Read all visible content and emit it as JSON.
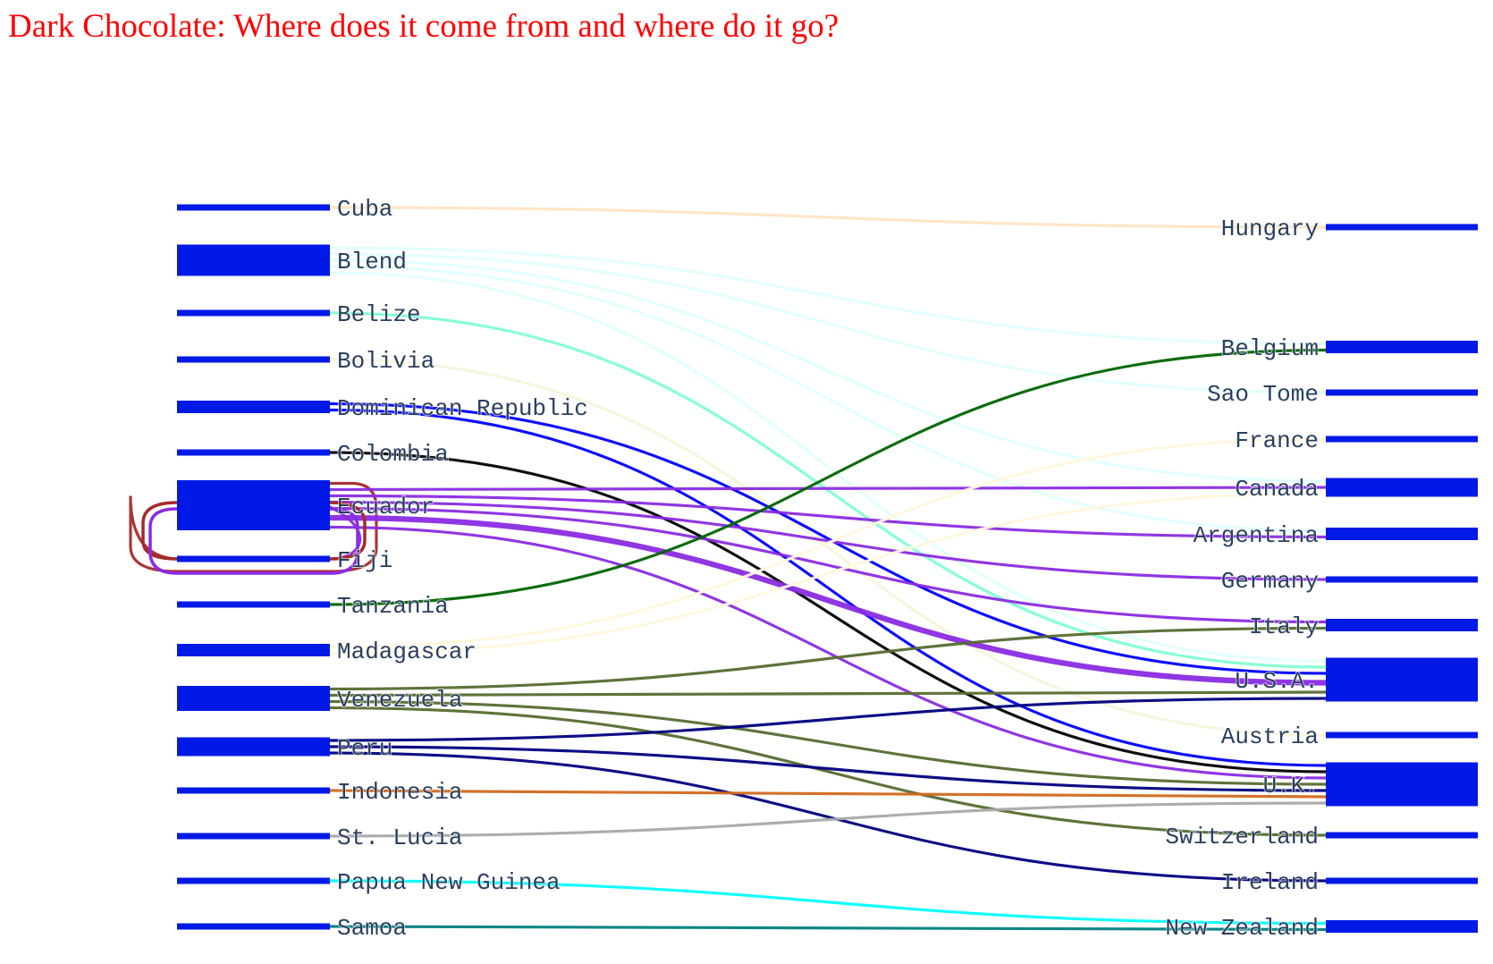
{
  "title": "Dark Chocolate: Where does it come from and where do it go?",
  "colors": {
    "title": "#ff0000",
    "node": "#0019e6",
    "label": "#2a3f5f"
  },
  "chart_data": {
    "type": "sankey",
    "sources": [
      "Cuba",
      "Blend",
      "Belize",
      "Bolivia",
      "Dominican Republic",
      "Colombia",
      "Ecuador",
      "Fiji",
      "Tanzania",
      "Madagascar",
      "Venezuela",
      "Peru",
      "Indonesia",
      "St. Lucia",
      "Papua New Guinea",
      "Samoa"
    ],
    "targets": [
      "Hungary",
      "Belgium",
      "Sao Tome",
      "France",
      "Canada",
      "Argentina",
      "Germany",
      "Italy",
      "U.S.A.",
      "Austria",
      "U.K.",
      "Switzerland",
      "Ireland",
      "New Zealand"
    ],
    "links": [
      {
        "source": "Cuba",
        "target": "Hungary",
        "value": 1,
        "color": "#ffe4c4"
      },
      {
        "source": "Blend",
        "target": "Belgium",
        "value": 1,
        "color": "#e0ffff"
      },
      {
        "source": "Blend",
        "target": "Sao Tome",
        "value": 1,
        "color": "#e0ffff"
      },
      {
        "source": "Blend",
        "target": "Canada",
        "value": 1,
        "color": "#e0ffff"
      },
      {
        "source": "Blend",
        "target": "Argentina",
        "value": 1,
        "color": "#e0ffff"
      },
      {
        "source": "Blend",
        "target": "U.S.A.",
        "value": 1,
        "color": "#e0ffff"
      },
      {
        "source": "Belize",
        "target": "U.S.A.",
        "value": 1,
        "color": "#7fffd4"
      },
      {
        "source": "Bolivia",
        "target": "Austria",
        "value": 1,
        "color": "#f5f5dc"
      },
      {
        "source": "Dominican Republic",
        "target": "U.S.A.",
        "value": 1,
        "color": "#0000ff"
      },
      {
        "source": "Dominican Republic",
        "target": "U.K.",
        "value": 1,
        "color": "#0000ff"
      },
      {
        "source": "Colombia",
        "target": "U.K.",
        "value": 1,
        "color": "#000000"
      },
      {
        "source": "Ecuador",
        "target": "Fiji",
        "value": 1,
        "color": "#a52a2a"
      },
      {
        "source": "Ecuador",
        "target": "Canada",
        "value": 1,
        "color": "#8a2be2"
      },
      {
        "source": "Ecuador",
        "target": "Argentina",
        "value": 1,
        "color": "#8a2be2"
      },
      {
        "source": "Ecuador",
        "target": "Germany",
        "value": 1,
        "color": "#8a2be2"
      },
      {
        "source": "Ecuador",
        "target": "Italy",
        "value": 1,
        "color": "#8a2be2"
      },
      {
        "source": "Ecuador",
        "target": "U.S.A.",
        "value": 2,
        "color": "#8a2be2"
      },
      {
        "source": "Ecuador",
        "target": "U.K.",
        "value": 1,
        "color": "#8a2be2"
      },
      {
        "source": "Fiji",
        "target": "Ecuador",
        "value": 1,
        "color": "#8a2be2"
      },
      {
        "source": "Tanzania",
        "target": "Belgium",
        "value": 1,
        "color": "#006400"
      },
      {
        "source": "Madagascar",
        "target": "France",
        "value": 1,
        "color": "#fff8dc"
      },
      {
        "source": "Madagascar",
        "target": "Canada",
        "value": 1,
        "color": "#fff8dc"
      },
      {
        "source": "Venezuela",
        "target": "Italy",
        "value": 1,
        "color": "#556b2f"
      },
      {
        "source": "Venezuela",
        "target": "U.S.A.",
        "value": 1,
        "color": "#556b2f"
      },
      {
        "source": "Venezuela",
        "target": "U.K.",
        "value": 1,
        "color": "#556b2f"
      },
      {
        "source": "Venezuela",
        "target": "Switzerland",
        "value": 1,
        "color": "#556b2f"
      },
      {
        "source": "Peru",
        "target": "U.S.A.",
        "value": 1,
        "color": "#000080"
      },
      {
        "source": "Peru",
        "target": "U.K.",
        "value": 1,
        "color": "#000080"
      },
      {
        "source": "Peru",
        "target": "Ireland",
        "value": 1,
        "color": "#000080"
      },
      {
        "source": "Indonesia",
        "target": "U.K.",
        "value": 1,
        "color": "#d2691e"
      },
      {
        "source": "St. Lucia",
        "target": "U.K.",
        "value": 1,
        "color": "#a9a9a9"
      },
      {
        "source": "Papua New Guinea",
        "target": "New Zealand",
        "value": 1,
        "color": "#00ffff"
      },
      {
        "source": "Samoa",
        "target": "New Zealand",
        "value": 1,
        "color": "#008080"
      }
    ]
  }
}
